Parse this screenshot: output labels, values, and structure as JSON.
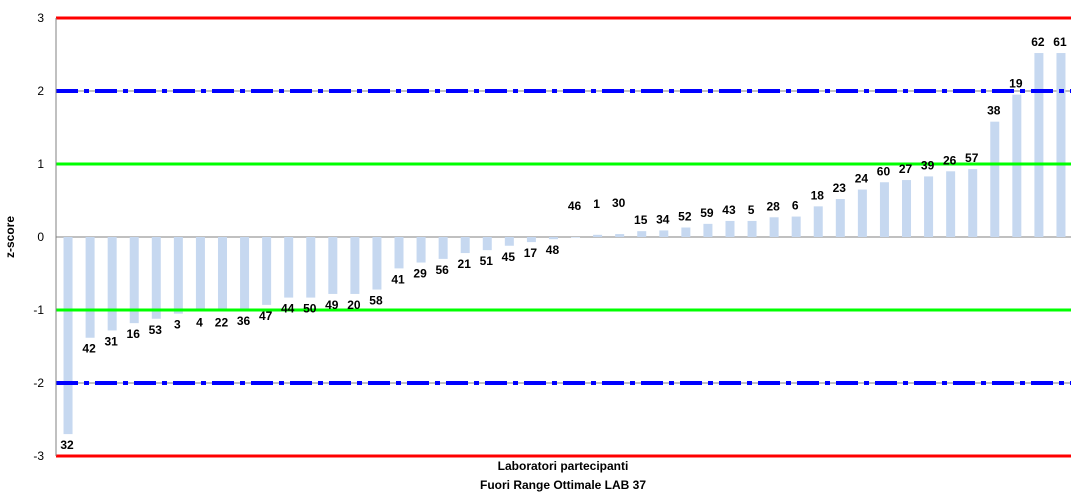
{
  "chart_data": {
    "type": "bar",
    "ylabel": "z-score",
    "xlabel": "Laboratori partecipanti",
    "subtitle": "Fuori Range Ottimale LAB 37",
    "ylim": [
      -3,
      3
    ],
    "yticks": [
      "3",
      "2",
      "1",
      "0",
      "-1",
      "-2",
      "-3"
    ],
    "grid": true,
    "bar_color": "#c6d8f0",
    "categories": [
      "32",
      "42",
      "31",
      "16",
      "53",
      "3",
      "4",
      "22",
      "36",
      "47",
      "44",
      "50",
      "49",
      "20",
      "58",
      "41",
      "29",
      "56",
      "21",
      "51",
      "45",
      "17",
      "48",
      "46",
      "1",
      "30",
      "15",
      "34",
      "52",
      "59",
      "43",
      "5",
      "28",
      "6",
      "18",
      "23",
      "24",
      "60",
      "27",
      "39",
      "26",
      "57",
      "38",
      "19",
      "62",
      "61"
    ],
    "values": [
      -2.7,
      -1.38,
      -1.28,
      -1.18,
      -1.12,
      -1.05,
      -1.02,
      -1.02,
      -1.0,
      -0.93,
      -0.83,
      -0.83,
      -0.78,
      -0.78,
      -0.72,
      -0.43,
      -0.35,
      -0.3,
      -0.22,
      -0.18,
      -0.12,
      -0.07,
      -0.03,
      0.0,
      0.03,
      0.04,
      0.08,
      0.09,
      0.13,
      0.18,
      0.22,
      0.22,
      0.27,
      0.28,
      0.42,
      0.52,
      0.65,
      0.75,
      0.78,
      0.83,
      0.9,
      0.93,
      1.58,
      1.95,
      2.52,
      2.52
    ],
    "reference_lines": [
      {
        "value": 3,
        "color": "#ff0000",
        "style": "solid"
      },
      {
        "value": -3,
        "color": "#ff0000",
        "style": "solid"
      },
      {
        "value": 2,
        "color": "#0000ff",
        "style": "dashdot"
      },
      {
        "value": -2,
        "color": "#0000ff",
        "style": "dashdot"
      },
      {
        "value": 1,
        "color": "#00ff00",
        "style": "solid"
      },
      {
        "value": -1,
        "color": "#00ff00",
        "style": "solid"
      }
    ]
  }
}
